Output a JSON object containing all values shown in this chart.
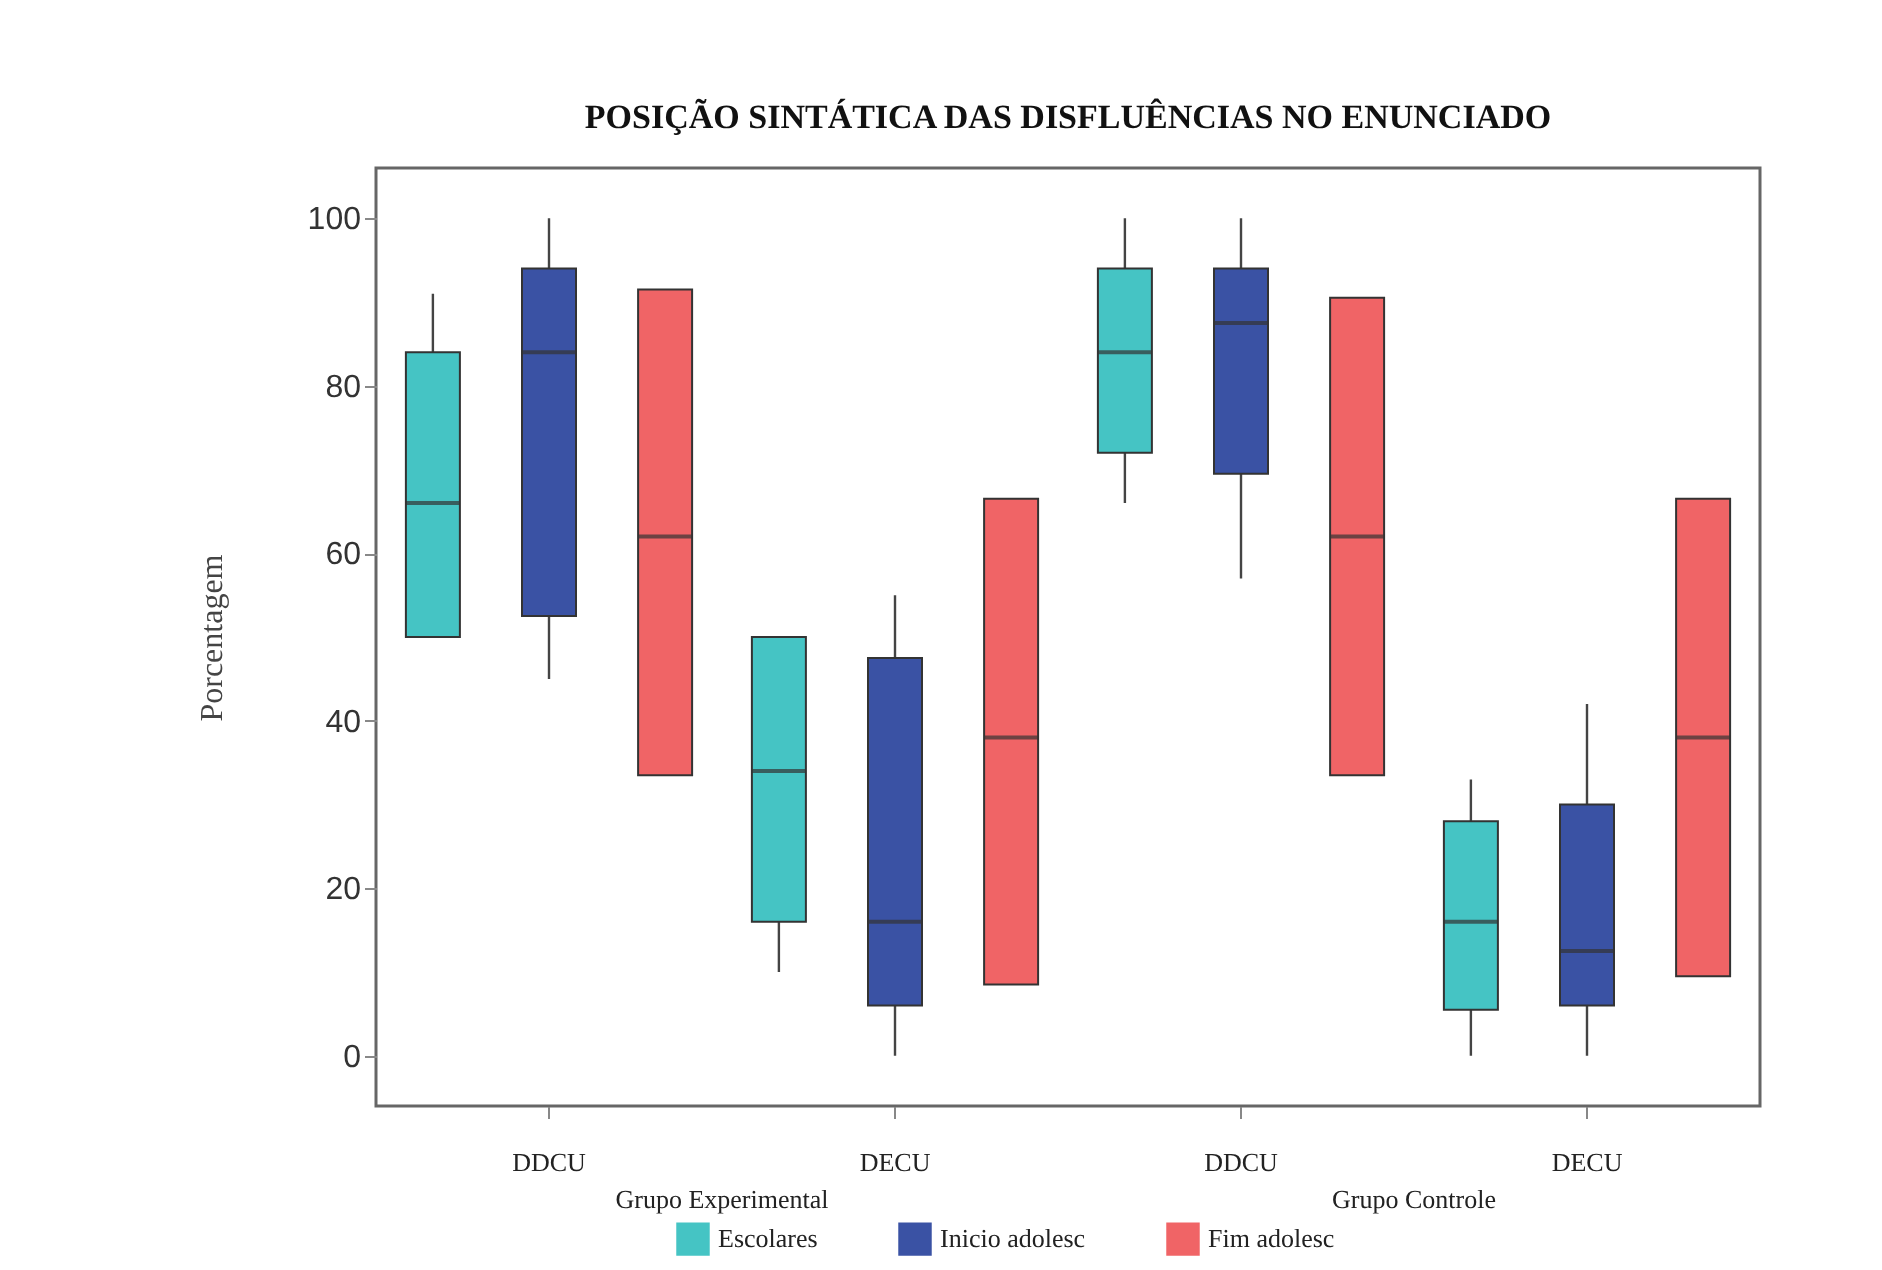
{
  "chart_data": {
    "type": "box",
    "title": "POSIÇÃO SINTÁTICA DAS DISFLUÊNCIAS NO ENUNCIADO",
    "ylabel": "Porcentagem",
    "categories": [
      "DDCU",
      "DECU",
      "DDCU",
      "DECU"
    ],
    "annotations": [
      "Grupo Experimental",
      "Grupo Controle"
    ],
    "ylim": [
      -6,
      106
    ],
    "yticks": [
      0,
      20,
      40,
      60,
      80,
      100
    ],
    "legend": "bottom",
    "series": [
      {
        "name": "Escolares",
        "color": "#45c4c4",
        "boxes": [
          {
            "low": 50,
            "q1": 50,
            "median": 66,
            "q3": 84,
            "high": 91
          },
          {
            "low": 10,
            "q1": 16,
            "median": 34,
            "q3": 50,
            "high": 50
          },
          {
            "low": 66,
            "q1": 72,
            "median": 84,
            "q3": 94,
            "high": 100
          },
          {
            "low": 0,
            "q1": 5.5,
            "median": 16,
            "q3": 28,
            "high": 33
          }
        ]
      },
      {
        "name": "Inicio adolesc",
        "color": "#3a52a4",
        "boxes": [
          {
            "low": 45,
            "q1": 52.5,
            "median": 84,
            "q3": 94,
            "high": 100
          },
          {
            "low": 0,
            "q1": 6,
            "median": 16,
            "q3": 47.5,
            "high": 55
          },
          {
            "low": 57,
            "q1": 69.5,
            "median": 87.5,
            "q3": 94,
            "high": 100
          },
          {
            "low": 0,
            "q1": 6,
            "median": 12.5,
            "q3": 30,
            "high": 42
          }
        ]
      },
      {
        "name": "Fim adolesc",
        "color": "#f06466",
        "boxes": [
          {
            "low": 33.5,
            "q1": 33.5,
            "median": 62,
            "q3": 91.5,
            "high": 91.5
          },
          {
            "low": 8.5,
            "q1": 8.5,
            "median": 38,
            "q3": 66.5,
            "high": 66.5
          },
          {
            "low": 33.5,
            "q1": 33.5,
            "median": 62,
            "q3": 90.5,
            "high": 90.5
          },
          {
            "low": 9.5,
            "q1": 9.5,
            "median": 38,
            "q3": 66.5,
            "high": 66.5
          }
        ]
      }
    ]
  }
}
